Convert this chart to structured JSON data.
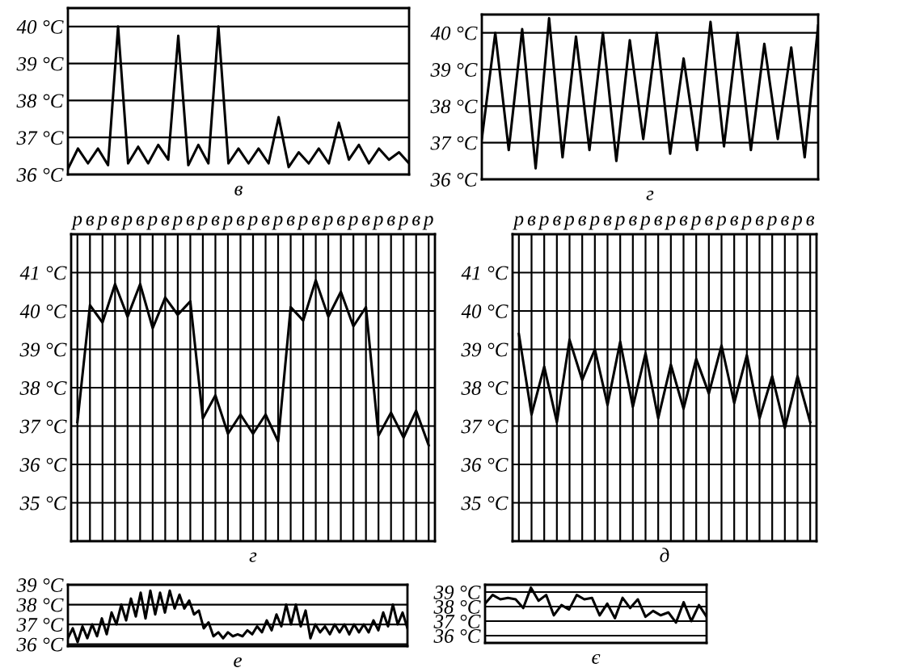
{
  "chart_data": [
    {
      "type": "line",
      "xlabel": "в",
      "categories": [
        null,
        null,
        null,
        null,
        null,
        null,
        null,
        null,
        null,
        null,
        null,
        null,
        null,
        null,
        null,
        null,
        null,
        null,
        null,
        null,
        null,
        null,
        null,
        null,
        null,
        null,
        null,
        null,
        null,
        null,
        null,
        null,
        null,
        null,
        null
      ],
      "values": [
        36.15,
        36.7,
        36.3,
        36.7,
        36.25,
        40,
        36.3,
        36.75,
        36.3,
        36.8,
        36.4,
        39.75,
        36.25,
        36.8,
        36.3,
        40,
        36.3,
        36.7,
        36.3,
        36.7,
        36.3,
        37.55,
        36.2,
        36.6,
        36.3,
        36.7,
        36.3,
        37.4,
        36.4,
        36.8,
        36.3,
        36.7,
        36.4,
        36.6,
        36.3
      ],
      "color": "#000000",
      "ylim": [
        36,
        40.5
      ],
      "yticks": [
        {
          "value": 40,
          "label": "40 °C"
        },
        {
          "value": 39,
          "label": "39 °C"
        },
        {
          "value": 38,
          "label": "38 °C"
        },
        {
          "value": 37,
          "label": "37 °C"
        },
        {
          "value": 36,
          "label": "36 °C"
        }
      ],
      "grid": "y",
      "tick_labels": "y"
    },
    {
      "type": "line",
      "xlabel": "г",
      "categories": [
        null,
        null,
        null,
        null,
        null,
        null,
        null,
        null,
        null,
        null,
        null,
        null,
        null,
        null,
        null,
        null,
        null,
        null,
        null,
        null,
        null,
        null,
        null,
        null,
        null,
        null
      ],
      "values": [
        37.1,
        40,
        36.8,
        40.1,
        36.3,
        40.4,
        36.6,
        39.9,
        36.8,
        40,
        36.5,
        39.8,
        37.1,
        40,
        36.7,
        39.3,
        36.8,
        40.3,
        36.9,
        40,
        36.8,
        39.7,
        37.1,
        39.6,
        36.6,
        40.2
      ],
      "color": "#000000",
      "ylim": [
        36,
        40.5
      ],
      "yticks": [
        {
          "value": 40,
          "label": "40 °C"
        },
        {
          "value": 39,
          "label": "39 °C"
        },
        {
          "value": 38,
          "label": "38 °C"
        },
        {
          "value": 37,
          "label": "37 °C"
        },
        {
          "value": 36,
          "label": "36 °C"
        }
      ],
      "grid": "y",
      "tick_labels": "y"
    },
    {
      "type": "line",
      "xlabel": "г",
      "categories": [
        "р",
        "в",
        "р",
        "в",
        "р",
        "в",
        "р",
        "в",
        "р",
        "в",
        "р",
        "в",
        "р",
        "в",
        "р",
        "в",
        "р",
        "в",
        "р",
        "в",
        "р",
        "в",
        "р",
        "в",
        "р",
        "в",
        "р",
        "в",
        "р"
      ],
      "values": [
        37.1,
        40.15,
        39.7,
        40.7,
        39.85,
        40.7,
        39.55,
        40.35,
        39.9,
        40.25,
        37.2,
        37.8,
        36.8,
        37.3,
        36.8,
        37.3,
        36.6,
        40.1,
        39.75,
        40.8,
        39.85,
        40.5,
        39.6,
        40.1,
        36.75,
        37.35,
        36.7,
        37.4,
        36.5
      ],
      "color": "#000000",
      "ylim": [
        34,
        42
      ],
      "yticks": [
        {
          "value": 41,
          "label": "41 °C"
        },
        {
          "value": 40,
          "label": "40 °C"
        },
        {
          "value": 39,
          "label": "39 °C"
        },
        {
          "value": 38,
          "label": "38 °C"
        },
        {
          "value": 37,
          "label": "37 °C"
        },
        {
          "value": 36,
          "label": "36 °C"
        },
        {
          "value": 35,
          "label": "35 °C"
        }
      ],
      "grid": true
    },
    {
      "type": "line",
      "xlabel": "д",
      "categories": [
        "р",
        "в",
        "р",
        "в",
        "р",
        "в",
        "р",
        "в",
        "р",
        "в",
        "р",
        "в",
        "р",
        "в",
        "р",
        "в",
        "р",
        "в",
        "р",
        "в",
        "р",
        "в",
        "р",
        "в"
      ],
      "values": [
        39.4,
        37.3,
        38.55,
        37.1,
        39.25,
        38.2,
        39,
        37.55,
        39.2,
        37.5,
        38.9,
        37.2,
        38.6,
        37.45,
        38.75,
        37.85,
        39.1,
        37.6,
        38.85,
        37.2,
        38.3,
        36.95,
        38.3,
        37.1
      ],
      "color": "#000000",
      "ylim": [
        34,
        42
      ],
      "yticks": [
        {
          "value": 41,
          "label": "41 °C"
        },
        {
          "value": 40,
          "label": "40 °C"
        },
        {
          "value": 39,
          "label": "39 °C"
        },
        {
          "value": 38,
          "label": "38 °C"
        },
        {
          "value": 37,
          "label": "37 °C"
        },
        {
          "value": 36,
          "label": "36 °C"
        },
        {
          "value": 35,
          "label": "35 °C"
        }
      ],
      "grid": true
    },
    {
      "type": "line",
      "xlabel": "е",
      "categories": [
        null,
        null,
        null,
        null,
        null,
        null,
        null,
        null,
        null,
        null,
        null,
        null,
        null,
        null,
        null,
        null,
        null,
        null,
        null,
        null,
        null,
        null,
        null,
        null,
        null,
        null,
        null,
        null,
        null,
        null,
        null,
        null,
        null,
        null,
        null,
        null,
        null,
        null,
        null,
        null,
        null,
        null,
        null,
        null,
        null,
        null,
        null,
        null,
        null,
        null,
        null,
        null,
        null,
        null,
        null,
        null,
        null,
        null,
        null,
        null,
        null,
        null,
        null,
        null,
        null,
        null,
        null,
        null,
        null,
        null,
        null
      ],
      "values": [
        36.3,
        36.8,
        36.1,
        36.9,
        36.3,
        37.0,
        36.4,
        37.3,
        36.5,
        37.6,
        37.0,
        38.0,
        37.2,
        38.3,
        37.4,
        38.6,
        37.3,
        38.7,
        37.5,
        38.6,
        37.6,
        38.7,
        37.8,
        38.5,
        37.8,
        38.2,
        37.5,
        37.7,
        36.8,
        37.1,
        36.4,
        36.6,
        36.3,
        36.6,
        36.4,
        36.5,
        36.4,
        36.7,
        36.5,
        36.9,
        36.6,
        37.2,
        36.7,
        37.5,
        36.9,
        38.0,
        37.0,
        38.0,
        36.9,
        37.7,
        36.3,
        37.0,
        36.6,
        36.9,
        36.5,
        37.0,
        36.6,
        37.0,
        36.5,
        37.0,
        36.6,
        37.0,
        36.6,
        37.2,
        36.7,
        37.6,
        36.9,
        38.0,
        37.0,
        37.6,
        36.8
      ],
      "color": "#000000",
      "ylim": [
        35.9,
        39
      ],
      "yticks": [
        {
          "value": 39,
          "label": "39 °C"
        },
        {
          "value": 38,
          "label": "38 °C"
        },
        {
          "value": 37,
          "label": "37 °C"
        },
        {
          "value": 36,
          "label": "36 °C"
        }
      ],
      "grid": "y",
      "tick_labels": "y"
    },
    {
      "type": "line",
      "xlabel": "є",
      "categories": [
        null,
        null,
        null,
        null,
        null,
        null,
        null,
        null,
        null,
        null,
        null,
        null,
        null,
        null,
        null,
        null,
        null,
        null,
        null,
        null,
        null,
        null,
        null,
        null,
        null,
        null,
        null,
        null,
        null,
        null
      ],
      "values": [
        38.2,
        38.8,
        38.5,
        38.6,
        38.5,
        37.9,
        39.3,
        38.4,
        38.8,
        37.4,
        38.1,
        37.8,
        38.8,
        38.5,
        38.6,
        37.4,
        38.2,
        37.2,
        38.6,
        37.9,
        38.5,
        37.3,
        37.7,
        37.4,
        37.6,
        36.9,
        38.3,
        37.0,
        38.1,
        37.3
      ],
      "color": "#000000",
      "ylim": [
        35.5,
        39.5
      ],
      "yticks": [
        {
          "value": 39,
          "label": "39 °C"
        },
        {
          "value": 38,
          "label": "38 °C"
        },
        {
          "value": 37,
          "label": "37 °C"
        },
        {
          "value": 36,
          "label": "36 °C"
        }
      ],
      "grid": "y",
      "tick_labels": "y"
    }
  ]
}
